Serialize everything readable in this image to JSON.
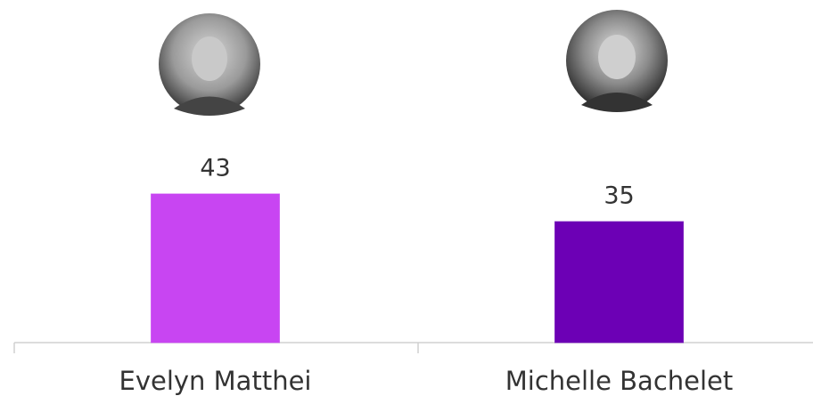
{
  "chart_data": {
    "type": "bar",
    "categories": [
      "Evelyn Matthei",
      "Michelle Bachelet"
    ],
    "values": [
      43,
      35
    ],
    "colors": [
      "#c845f2",
      "#6c00b5"
    ]
  }
}
